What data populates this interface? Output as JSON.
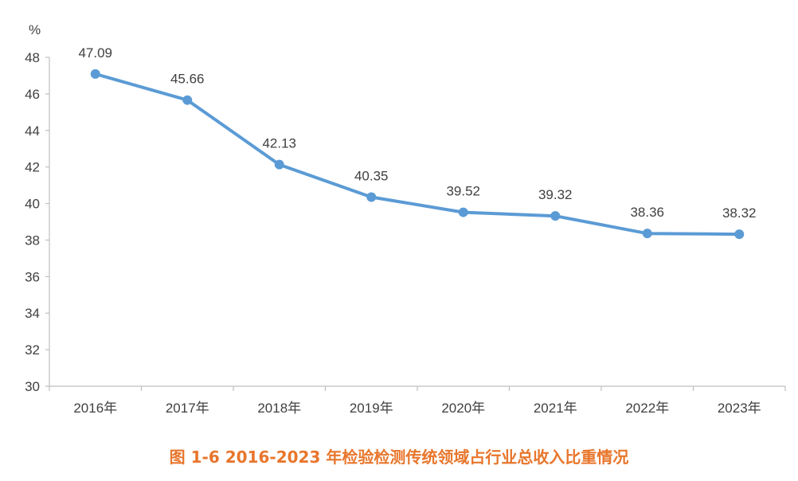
{
  "colors": {
    "line": "#5B9BD5",
    "axis": "#BFBFBF",
    "text": "#404040",
    "caption": "#E8762C"
  },
  "chart_data": {
    "type": "line",
    "unit": "%",
    "categories": [
      "2016年",
      "2017年",
      "2018年",
      "2019年",
      "2020年",
      "2021年",
      "2022年",
      "2023年"
    ],
    "series": [
      {
        "values": [
          47.09,
          45.66,
          42.13,
          40.35,
          39.52,
          39.32,
          38.36,
          38.32
        ]
      }
    ],
    "data_labels": [
      "47.09",
      "45.66",
      "42.13",
      "40.35",
      "39.52",
      "39.32",
      "38.36",
      "38.32"
    ],
    "ylim": [
      30,
      48
    ],
    "yticks": [
      30,
      32,
      34,
      36,
      38,
      40,
      42,
      44,
      46,
      48
    ],
    "grid": false,
    "legend": "none",
    "caption": "图 1-6    2016-2023 年检验检测传统领域占行业总收入比重情况"
  }
}
